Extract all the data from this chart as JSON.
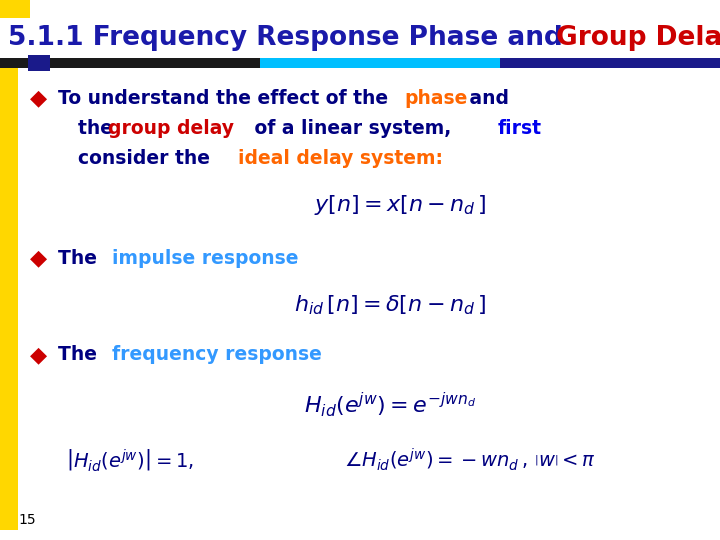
{
  "title_blue": "5.1.1 Frequency Response Phase and ",
  "title_red": "Group Delay",
  "title_fontsize": 19,
  "title_color_blue": "#1a1aaa",
  "title_color_red": "#CC0000",
  "bg_color": "#FFFFFF",
  "left_bar_color": "#FFD700",
  "slide_number": "15",
  "eq1": "$y[n]= x[n-n_d\\,]$",
  "eq2": "$h_{id}\\,[n]= \\delta[n-n_d\\,]$",
  "eq3": "$H_{id}\\left(e^{jw}\\right)= e^{-jwn_d}$",
  "eq4_left": "$\\left|H_{id}\\left(e^{jw}\\right)\\right|= 1,$",
  "eq4_right": "$\\angle H_{id}\\left(e^{jw}\\right)= -wn_d\\,,\\,\\left|w\\right|< \\pi$"
}
